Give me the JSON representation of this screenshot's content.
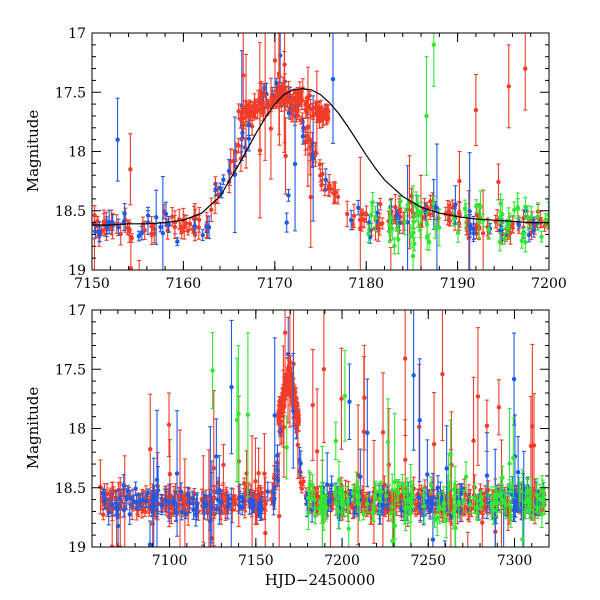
{
  "chart_data": [
    {
      "type": "scatter",
      "panel": "top",
      "xlabel": "",
      "ylabel": "Magnitude",
      "xlim": [
        7150,
        7200
      ],
      "ylim": [
        19,
        17
      ],
      "y_inverted": true,
      "x_tick_labels": [
        "7150",
        "7160",
        "7170",
        "7180",
        "7190",
        "7200"
      ],
      "y_tick_labels": [
        "17",
        "17.5",
        "18",
        "18.5",
        "19"
      ],
      "model_curve": {
        "name": "fit",
        "color": "#000000",
        "x": [
          7150,
          7152,
          7154,
          7156,
          7158,
          7160,
          7162,
          7164,
          7166,
          7167,
          7168,
          7169,
          7170,
          7171,
          7172,
          7173,
          7174,
          7175,
          7176,
          7177,
          7178,
          7179,
          7180,
          7181,
          7182,
          7184,
          7186,
          7188,
          7190,
          7192,
          7194,
          7196,
          7198,
          7200
        ],
        "y": [
          18.62,
          18.62,
          18.61,
          18.61,
          18.6,
          18.58,
          18.52,
          18.38,
          18.12,
          17.98,
          17.84,
          17.71,
          17.6,
          17.52,
          17.48,
          17.47,
          17.48,
          17.52,
          17.59,
          17.68,
          17.79,
          17.91,
          18.03,
          18.14,
          18.24,
          18.38,
          18.47,
          18.52,
          18.55,
          18.57,
          18.58,
          18.59,
          18.6,
          18.6
        ]
      }
    },
    {
      "type": "scatter",
      "panel": "bottom",
      "xlabel": "HJD−2450000",
      "ylabel": "Magnitude",
      "xlim": [
        7055,
        7320
      ],
      "ylim": [
        19,
        17
      ],
      "y_inverted": true,
      "x_tick_labels": [
        "7100",
        "7150",
        "7200",
        "7250",
        "7300"
      ],
      "y_tick_labels": [
        "17",
        "17.5",
        "18",
        "18.5",
        "19"
      ]
    }
  ],
  "series_colors": {
    "red": "#f03c28",
    "blue": "#1e5ae6",
    "green": "#32e632"
  },
  "series_names": [
    "red",
    "blue",
    "green"
  ]
}
